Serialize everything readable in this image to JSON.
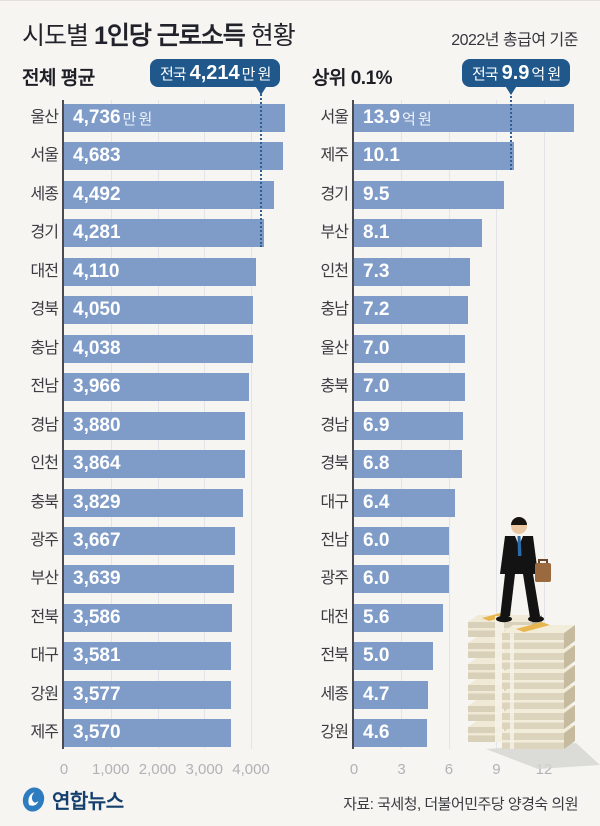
{
  "header": {
    "title_prefix": "시도별 ",
    "title_bold": "1인당 근로소득",
    "title_suffix": " 현황",
    "subtitle": "2022년 총급여 기준"
  },
  "chart_data": [
    {
      "type": "bar",
      "orientation": "horizontal",
      "title": "전체 평균",
      "unit": "만 원",
      "national_average": {
        "prefix": "전국",
        "value": 4214,
        "display": "4,214",
        "unit": "만 원"
      },
      "categories": [
        "울산",
        "서울",
        "세종",
        "경기",
        "대전",
        "경북",
        "충남",
        "전남",
        "경남",
        "인천",
        "충북",
        "광주",
        "부산",
        "전북",
        "대구",
        "강원",
        "제주"
      ],
      "values": [
        4736,
        4683,
        4492,
        4281,
        4110,
        4050,
        4038,
        3966,
        3880,
        3864,
        3829,
        3667,
        3639,
        3586,
        3581,
        3577,
        3570
      ],
      "value_labels": [
        "4,736",
        "4,683",
        "4,492",
        "4,281",
        "4,110",
        "4,050",
        "4,038",
        "3,966",
        "3,880",
        "3,864",
        "3,829",
        "3,667",
        "3,639",
        "3,586",
        "3,581",
        "3,577",
        "3,570"
      ],
      "x_ticks": [
        {
          "value": 0,
          "label": "0"
        },
        {
          "value": 1000,
          "label": "1,000"
        },
        {
          "value": 2000,
          "label": "2,000"
        },
        {
          "value": 3000,
          "label": "3,000"
        },
        {
          "value": 4000,
          "label": "4,000"
        }
      ],
      "xlim": [
        0,
        4900
      ],
      "grid": true,
      "legend": "none"
    },
    {
      "type": "bar",
      "orientation": "horizontal",
      "title": "상위 0.1%",
      "unit": "억 원",
      "national_average": {
        "prefix": "전국",
        "value": 9.9,
        "display": "9.9",
        "unit": "억 원"
      },
      "categories": [
        "서울",
        "제주",
        "경기",
        "부산",
        "인천",
        "충남",
        "울산",
        "충북",
        "경남",
        "경북",
        "대구",
        "전남",
        "광주",
        "대전",
        "전북",
        "세종",
        "강원"
      ],
      "values": [
        13.9,
        10.1,
        9.5,
        8.1,
        7.3,
        7.2,
        7.0,
        7.0,
        6.9,
        6.8,
        6.4,
        6.0,
        6.0,
        5.6,
        5.0,
        4.7,
        4.6
      ],
      "value_labels": [
        "13.9",
        "10.1",
        "9.5",
        "8.1",
        "7.3",
        "7.2",
        "7.0",
        "7.0",
        "6.9",
        "6.8",
        "6.4",
        "6.0",
        "6.0",
        "5.6",
        "5.0",
        "4.7",
        "4.6"
      ],
      "x_ticks": [
        {
          "value": 0,
          "label": "0"
        },
        {
          "value": 3,
          "label": "3"
        },
        {
          "value": 6,
          "label": "6"
        },
        {
          "value": 9,
          "label": "9"
        },
        {
          "value": 12,
          "label": "12"
        }
      ],
      "xlim": [
        0,
        14.6
      ],
      "grid": true,
      "legend": "none"
    }
  ],
  "footer": {
    "logo_text": "연합뉴스",
    "source": "자료: 국세청, 더불어민주당 양경숙 의원"
  },
  "colors": {
    "bar": "#7f9cc9",
    "callout_bg": "#20588c",
    "dashed_line": "#2f6195",
    "axis_line": "#4a4a52",
    "gridline": "#e3e4e7",
    "background": "#f6f5f2",
    "category_text": "#3c3c42",
    "tick_text": "#b2b2b6",
    "title_text": "#22222a",
    "logo_blue": "#2e7cc0",
    "logo_text": "#15406e"
  },
  "illustration": {
    "description": "businessman standing on stacks of money"
  }
}
